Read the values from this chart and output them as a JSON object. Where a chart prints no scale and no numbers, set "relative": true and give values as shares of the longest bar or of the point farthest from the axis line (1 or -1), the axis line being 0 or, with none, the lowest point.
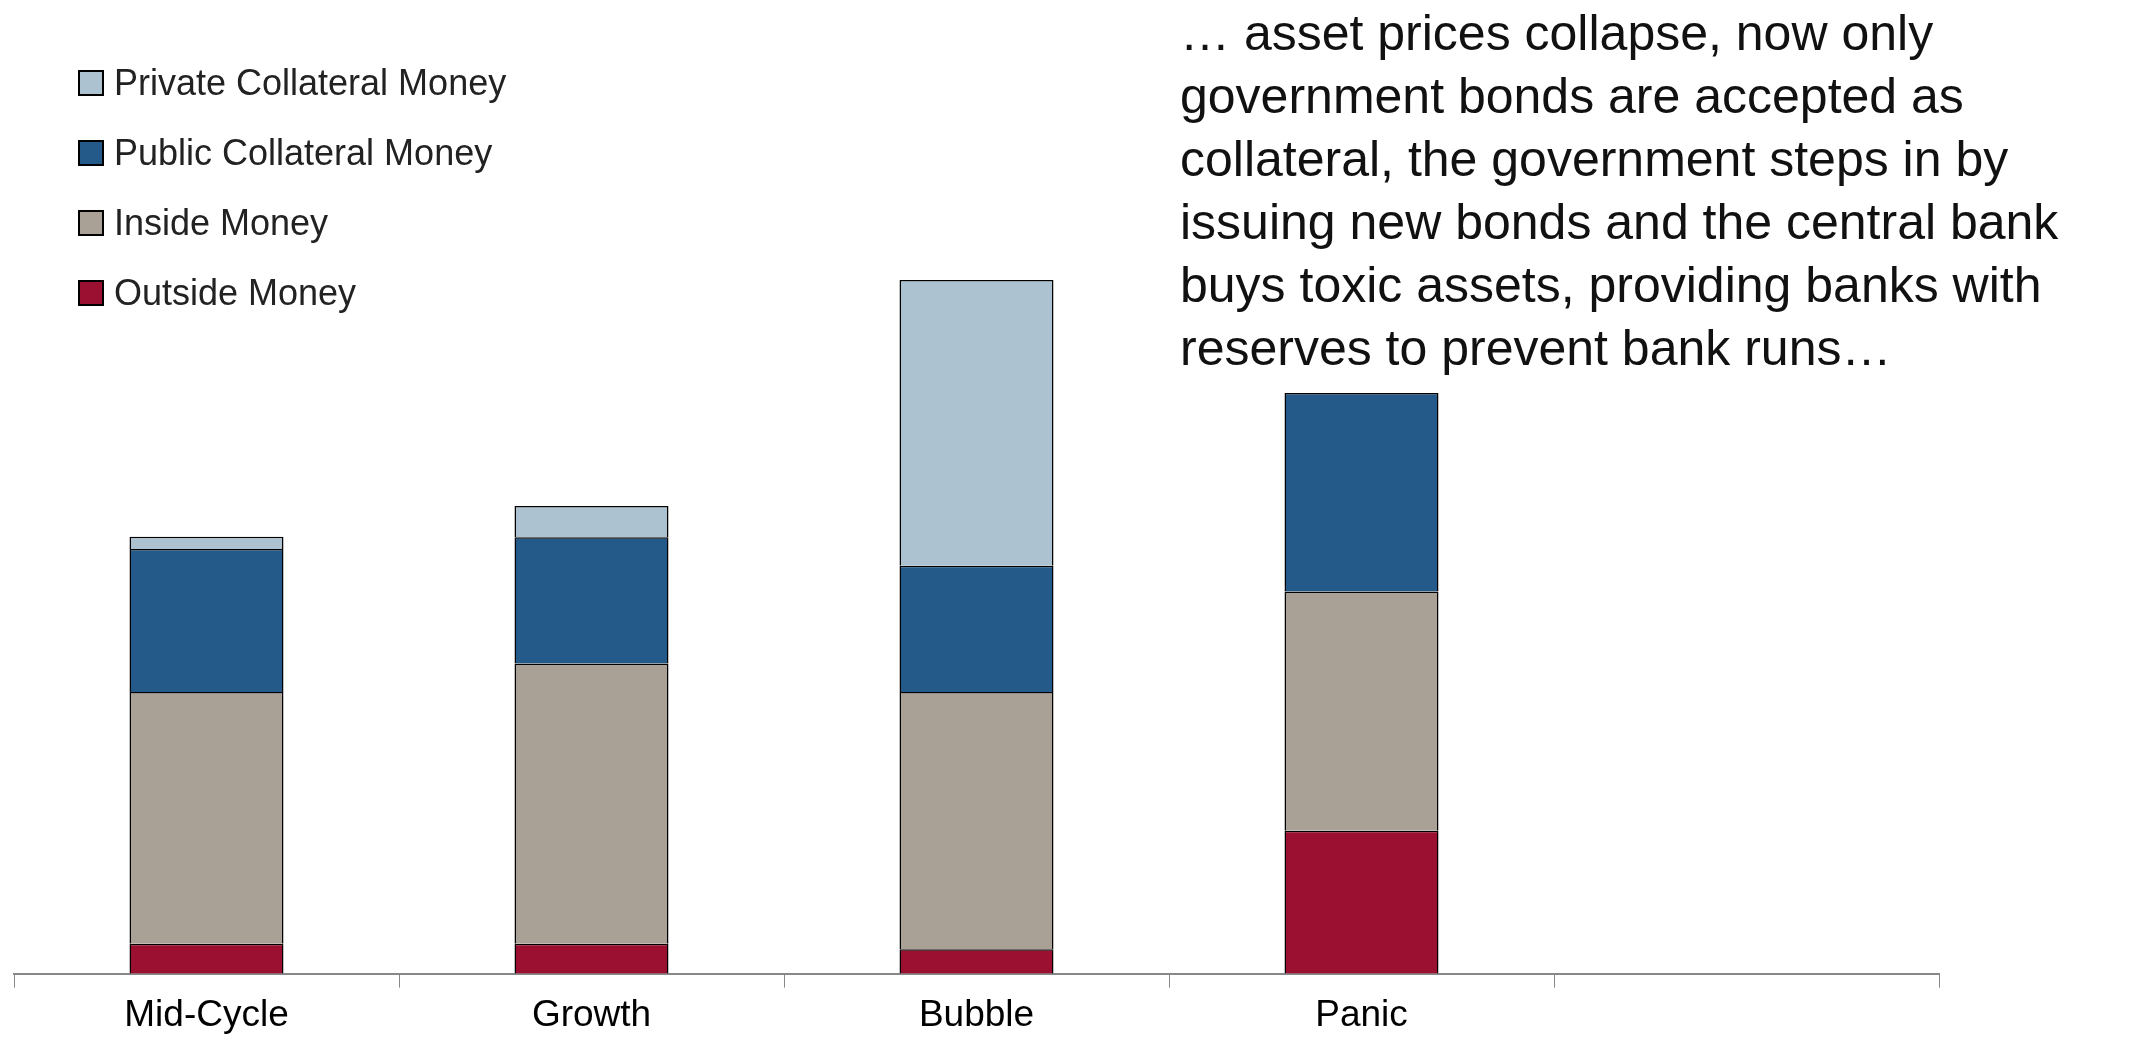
{
  "chart_data": {
    "type": "bar",
    "stacked": true,
    "relative": true,
    "categories": [
      "Mid-Cycle",
      "Growth",
      "Bubble",
      "Panic",
      null
    ],
    "series": [
      {
        "name": "Outside Money",
        "color": "#9b1030",
        "values": [
          0.043,
          0.043,
          0.035,
          0.206,
          0
        ]
      },
      {
        "name": "Inside Money",
        "color": "#a9a096",
        "values": [
          0.363,
          0.404,
          0.371,
          0.345,
          0
        ]
      },
      {
        "name": "Public Collateral Money",
        "color": "#235a8a",
        "values": [
          0.206,
          0.182,
          0.182,
          0.286,
          0
        ]
      },
      {
        "name": "Private Collateral Money",
        "color": "#adc2d0",
        "values": [
          0.018,
          0.045,
          0.412,
          0,
          0
        ]
      }
    ],
    "legend": "top left",
    "annotations": [
      "… asset prices collapse, now only government bonds are accepted as collateral, the government steps in by issuing new bonds and the central bank buys toxic assets, providing banks with reserves to prevent bank runs…"
    ]
  }
}
